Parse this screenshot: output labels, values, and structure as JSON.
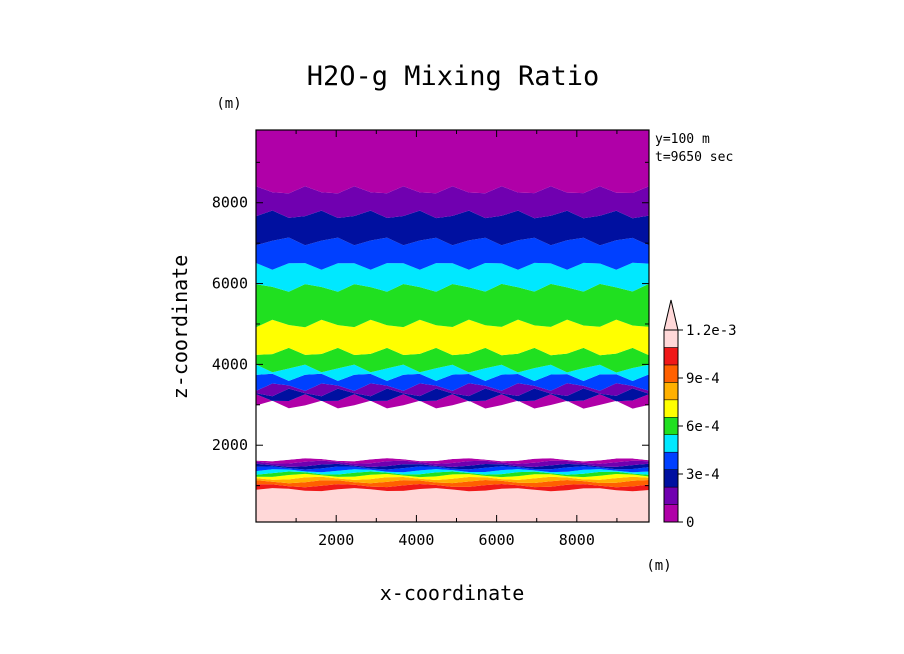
{
  "chart_data": {
    "type": "heatmap",
    "title": "H2O-g Mixing Ratio",
    "xlabel": "x-coordinate",
    "ylabel": "z-coordinate",
    "x_unit": "(m)",
    "y_unit": "(m)",
    "info_lines": [
      "y=100 m",
      "t=9650 sec"
    ],
    "xlim": [
      0,
      9800
    ],
    "ylim": [
      100,
      9800
    ],
    "xticks": [
      2000,
      4000,
      6000,
      8000
    ],
    "xtick_labels": [
      "2000",
      "4000",
      "6000",
      "8000"
    ],
    "yticks": [
      2000,
      4000,
      6000,
      8000
    ],
    "ytick_labels": [
      "2000",
      "4000",
      "6000",
      "8000"
    ],
    "colorbar": {
      "levels": [
        0,
        0.00015,
        0.0003,
        0.00045,
        0.0006,
        0.00075,
        0.0009,
        0.00105,
        0.0012
      ],
      "tick_labels": [
        "0",
        "3e-4",
        "6e-4",
        "9e-4",
        "1.2e-3"
      ],
      "tick_values": [
        0,
        0.0003,
        0.0006,
        0.0009,
        0.0012
      ],
      "colors": [
        "#b000a8",
        "#7000b0",
        "#0010a0",
        "#0040ff",
        "#00e8ff",
        "#20e020",
        "#ffff00",
        "#ffb000",
        "#ff6000",
        "#f01818",
        "#ffd8d8"
      ],
      "extend": "max"
    },
    "bands": [
      {
        "name": "surface",
        "z": [
          100,
          900
        ],
        "color": "#ffd8d8"
      },
      {
        "name": "red",
        "z": [
          900,
          1000
        ],
        "color": "#f01818"
      },
      {
        "name": "orange-red",
        "z": [
          1000,
          1100
        ],
        "color": "#ff6000"
      },
      {
        "name": "orange",
        "z": [
          1100,
          1180
        ],
        "color": "#ffb000"
      },
      {
        "name": "yellow",
        "z": [
          1180,
          1250
        ],
        "color": "#ffff00"
      },
      {
        "name": "green",
        "z": [
          1250,
          1310
        ],
        "color": "#20e020"
      },
      {
        "name": "cyan",
        "z": [
          1310,
          1370
        ],
        "color": "#00e8ff"
      },
      {
        "name": "blue",
        "z": [
          1370,
          1440
        ],
        "color": "#0040ff"
      },
      {
        "name": "navy",
        "z": [
          1440,
          1500
        ],
        "color": "#0010a0"
      },
      {
        "name": "purple",
        "z": [
          1500,
          1580
        ],
        "color": "#7000b0"
      },
      {
        "name": "magenta",
        "z": [
          1580,
          1640
        ],
        "color": "#b000a8"
      },
      {
        "name": "dry layer",
        "z": [
          1640,
          3000
        ],
        "color": "#ffffff"
      },
      {
        "name": "magenta-upper",
        "z": [
          3000,
          3150
        ],
        "color": "#b000a8"
      },
      {
        "name": "navy-upper",
        "z": [
          3150,
          3300
        ],
        "color": "#0010a0"
      },
      {
        "name": "purple-upper",
        "z": [
          3300,
          3450
        ],
        "color": "#7000b0"
      },
      {
        "name": "blue-mid",
        "z": [
          3450,
          3700
        ],
        "color": "#0040ff"
      },
      {
        "name": "cyan-mid",
        "z": [
          3700,
          3900
        ],
        "color": "#00e8ff"
      },
      {
        "name": "green-mid",
        "z": [
          3900,
          4300
        ],
        "color": "#20e020"
      },
      {
        "name": "yellow-mid",
        "z": [
          4300,
          5000
        ],
        "color": "#ffff00"
      },
      {
        "name": "green-upper",
        "z": [
          5000,
          5900
        ],
        "color": "#20e020"
      },
      {
        "name": "cyan-upper",
        "z": [
          5900,
          6450
        ],
        "color": "#00e8ff"
      },
      {
        "name": "blue-upper",
        "z": [
          6450,
          7050
        ],
        "color": "#0040ff"
      },
      {
        "name": "navy-top",
        "z": [
          7050,
          7700
        ],
        "color": "#0010a0"
      },
      {
        "name": "purple-top",
        "z": [
          7700,
          8300
        ],
        "color": "#7000b0"
      },
      {
        "name": "magenta-top",
        "z": [
          8300,
          9800
        ],
        "color": "#b000a8"
      }
    ]
  }
}
